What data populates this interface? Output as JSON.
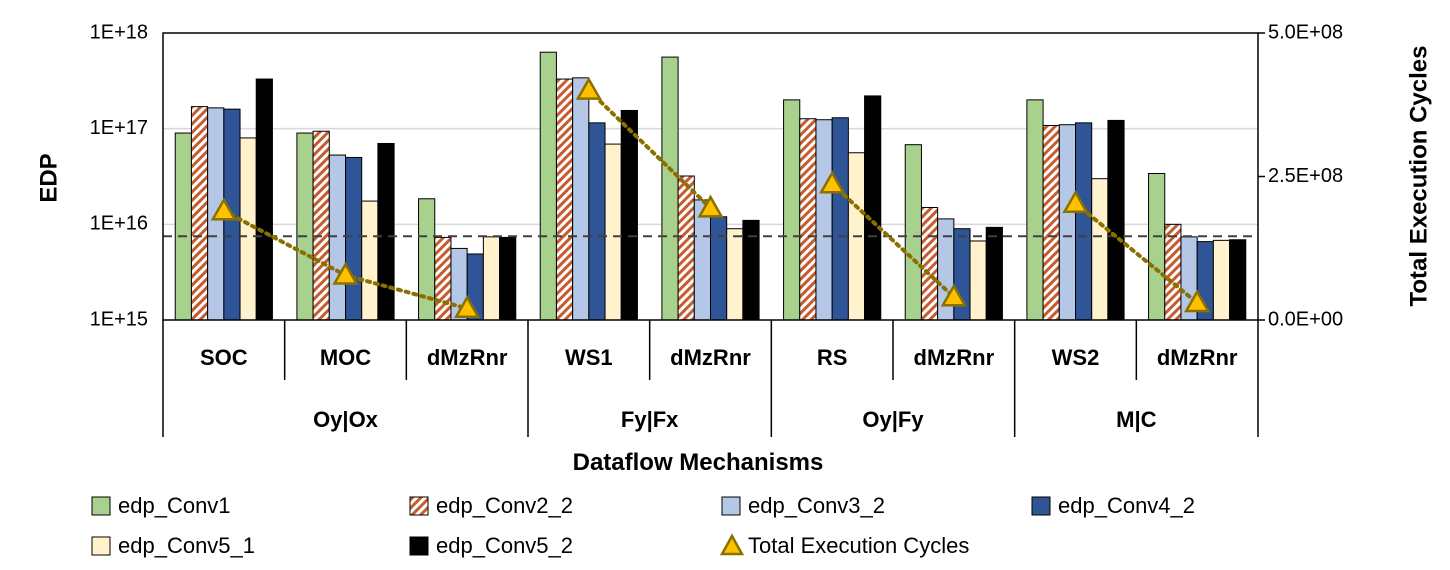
{
  "chart_data": {
    "type": "bar",
    "xlabel": "Dataflow Mechanisms",
    "ylabel": "EDP",
    "y2label": "Total Execution Cycles",
    "yscale": "log",
    "ylim": [
      1000000000000000.0,
      1e+18
    ],
    "y2lim": [
      0,
      500000000
    ],
    "yticks": [
      "1E+15",
      "1E+16",
      "1E+17",
      "1E+18"
    ],
    "y2ticks": [
      "0.0E+00",
      "2.5E+08",
      "5.0E+08"
    ],
    "grid": true,
    "legend_position": "bottom",
    "reference_line": 7500000000000000.0,
    "categories": [
      "SOC",
      "MOC",
      "dMzRnr",
      "WS1",
      "dMzRnr",
      "RS",
      "dMzRnr",
      "WS2",
      "dMzRnr"
    ],
    "groups": [
      {
        "label": "Oy|Ox",
        "span": 3
      },
      {
        "label": "Fy|Fx",
        "span": 2
      },
      {
        "label": "Oy|Fy",
        "span": 2
      },
      {
        "label": "M|C",
        "span": 2
      }
    ],
    "series": [
      {
        "name": "edp_Conv1",
        "color": "#a9d18e",
        "values": [
          9e+16,
          9e+16,
          1.85e+16,
          6.3e+17,
          5.6e+17,
          2e+17,
          6.8e+16,
          2e+17,
          3.4e+16
        ]
      },
      {
        "name": "edp_Conv2_2",
        "color": "#c65b2e",
        "pattern": "hatch",
        "values": [
          1.7e+17,
          9.4e+16,
          7300000000000000.0,
          3.3e+17,
          3.2e+16,
          1.27e+17,
          1.5e+16,
          1.08e+17,
          1e+16
        ]
      },
      {
        "name": "edp_Conv3_2",
        "color": "#b4c7e7",
        "values": [
          1.65e+17,
          5.3e+16,
          5600000000000000.0,
          3.4e+17,
          1.8e+16,
          1.24e+17,
          1.14e+16,
          1.1e+17,
          7400000000000000.0
        ]
      },
      {
        "name": "edp_Conv4_2",
        "color": "#2f5597",
        "values": [
          1.6e+17,
          5e+16,
          4900000000000000.0,
          1.15e+17,
          1.2e+16,
          1.3e+17,
          9000000000000000.0,
          1.15e+17,
          6600000000000000.0
        ]
      },
      {
        "name": "edp_Conv5_1",
        "color": "#fff2cc",
        "values": [
          8e+16,
          1.75e+16,
          7400000000000000.0,
          6.9e+16,
          9000000000000000.0,
          5.6e+16,
          6700000000000000.0,
          3e+16,
          6800000000000000.0
        ]
      },
      {
        "name": "edp_Conv5_2",
        "color": "#000000",
        "values": [
          3.3e+17,
          7e+16,
          7300000000000000.0,
          1.55e+17,
          1.1e+16,
          2.2e+17,
          9300000000000000.0,
          1.22e+17,
          6900000000000000.0
        ]
      }
    ],
    "line_series": {
      "name": "Total Execution Cycles",
      "axis": "right",
      "color": "#8a7000",
      "marker_fill": "#ffc000",
      "points": [
        {
          "category_index": 0,
          "value": 190000000
        },
        {
          "category_index": 1,
          "value": 78000000
        },
        {
          "category_index": 2,
          "value": 20000000
        },
        {
          "category_index": 3,
          "value": 400000000
        },
        {
          "category_index": 4,
          "value": 195000000
        },
        {
          "category_index": 5,
          "value": 237000000
        },
        {
          "category_index": 6,
          "value": 40000000
        },
        {
          "category_index": 7,
          "value": 203000000
        },
        {
          "category_index": 8,
          "value": 30000000
        }
      ],
      "segments": [
        [
          0,
          1,
          2
        ],
        [
          3,
          4
        ],
        [
          5,
          6
        ],
        [
          7,
          8
        ]
      ]
    }
  }
}
